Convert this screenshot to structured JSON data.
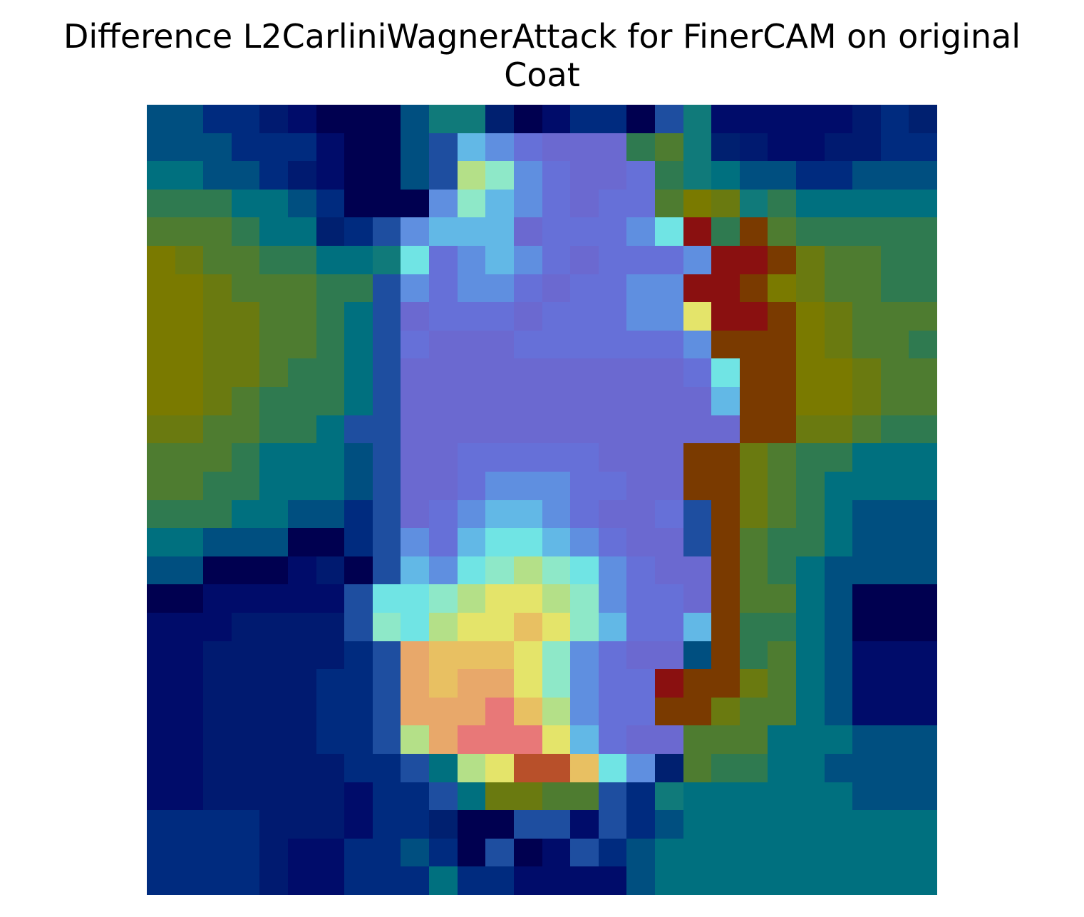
{
  "title": "Difference L2CarliniWagnerAttack for FinerCAM on original\nCoat",
  "image": {
    "grid_rows": 28,
    "grid_cols": 28,
    "colormap": "jet-over-grayscale",
    "palette": {
      "0": "#002b7f",
      "1": "#001a70",
      "2": "#000c6a",
      "3": "#000050",
      "4": "#004f80",
      "5": "#00707f",
      "6": "#2f7a50",
      "7": "#4e7c30",
      "8": "#6a7a10",
      "9": "#7a7a00",
      "A": "#6b69d0",
      "B": "#6670d8",
      "C": "#5f8fe0",
      "D": "#62b8e6",
      "E": "#70e4e4",
      "F": "#8ee8c8",
      "G": "#b4e088",
      "H": "#e4e46a",
      "I": "#e8c062",
      "J": "#e8a86a",
      "K": "#e87878",
      "L": "#8a1010",
      "M": "#7a3a00",
      "N": "#1e4ea0",
      "O": "#107a7a",
      "P": "#002070",
      "Q": "#b8502a"
    },
    "rows": [
      "4400123334OOP32003NO2222210P",
      "4440002334NDCBAAA67OP1221100",
      "5544012334NGFCBAAB6O5440044",
      "6665540333CFDCBABB798O655555",
      "777655P0NCDDDABBBCEL6M76666",
      "98776655OEBCDCBABBBCLLM87766",
      "99877766NCBCCBABBCCLLM98776",
      "99887765NABBBABBBCCHLLM9877",
      "99887765NBAAABBBBBBCMMM98776",
      "99887665NAAAAAAAAAABEMM99877",
      "99876665NAAAAAAAAAAADMM99877",
      "8877665NNAAAAAAAAAAAAMM88766",
      "77765554NAABBBBBAAAMM87665",
      "77665554NAABCCCBBAAMM87655",
      "66655440NABCDDCBAABNM87654",
      "55444330NCBDEEDCBAANM76654",
      "44333213NDCEFGFECBAAM76544",
      "3322222NEEFGHHGFCBBAM77543",
      "2221111NFEGHHIHFDBBDM66543",
      "22111110NJIIIHFCBAA4M67542",
      "22111100NJIJJHFCBBLMM87542",
      "22111100NJJJKIGCBBMM877542",
      "22111100NGJKKKHDBAA77755544",
      "221111100N5GHQQIECP7665544",
      "2211111200N58877N0O55555544",
      "0000111200P33NN2N04555555",
      "000012200403N32N04555555",
      "0000122000500222245555555"
    ]
  }
}
